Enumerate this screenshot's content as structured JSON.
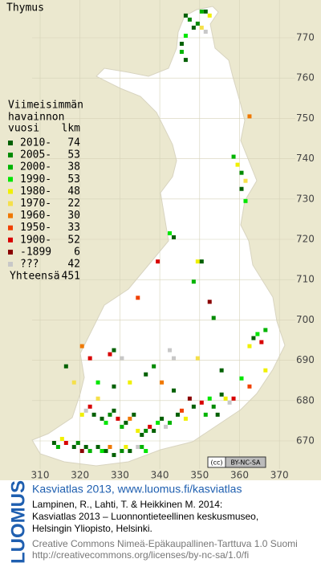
{
  "header": {
    "title": "Thymus"
  },
  "legend": {
    "heading": [
      "Viimeisimmän",
      "havainnon"
    ],
    "col_year": "vuosi",
    "col_count": "lkm",
    "rows": [
      {
        "label": "2010-",
        "count": 74,
        "color": "#006000"
      },
      {
        "label": "2005-",
        "count": 53,
        "color": "#008a00"
      },
      {
        "label": "2000-",
        "count": 38,
        "color": "#00b400"
      },
      {
        "label": "1990-",
        "count": 53,
        "color": "#00e600"
      },
      {
        "label": "1980-",
        "count": 48,
        "color": "#f0f000"
      },
      {
        "label": "1970-",
        "count": 22,
        "color": "#f5e04a"
      },
      {
        "label": "1960-",
        "count": 30,
        "color": "#f07800"
      },
      {
        "label": "1950-",
        "count": 33,
        "color": "#f04000"
      },
      {
        "label": "1900-",
        "count": 52,
        "color": "#d80000"
      },
      {
        "label": "-1899",
        "count": 6,
        "color": "#8a0000"
      },
      {
        "label": "???",
        "count": 42,
        "color": "#c8c8c8"
      }
    ],
    "total_label": "Yhteensä",
    "total": 451
  },
  "map": {
    "xticks": [
      310,
      320,
      330,
      340,
      350,
      360,
      370
    ],
    "yticks": [
      670,
      680,
      690,
      700,
      710,
      720,
      730,
      740,
      750,
      760,
      770
    ],
    "squares": [
      [
        346,
        775,
        0
      ],
      [
        347,
        774,
        1
      ],
      [
        348,
        772,
        0
      ],
      [
        346,
        770,
        3
      ],
      [
        345,
        768,
        0
      ],
      [
        345,
        766,
        2
      ],
      [
        346,
        764,
        0
      ],
      [
        350,
        776,
        2
      ],
      [
        351,
        776,
        0
      ],
      [
        352,
        775,
        4
      ],
      [
        349,
        773,
        1
      ],
      [
        350,
        772,
        5
      ],
      [
        351,
        771,
        10
      ],
      [
        362,
        750,
        6
      ],
      [
        358,
        740,
        2
      ],
      [
        359,
        738,
        4
      ],
      [
        360,
        736,
        1
      ],
      [
        361,
        734,
        5
      ],
      [
        360,
        732,
        0
      ],
      [
        361,
        729,
        3
      ],
      [
        342,
        721,
        3
      ],
      [
        343,
        720,
        0
      ],
      [
        349,
        714,
        4
      ],
      [
        350,
        714,
        0
      ],
      [
        339,
        714,
        8
      ],
      [
        348,
        709,
        2
      ],
      [
        334,
        705,
        7
      ],
      [
        352,
        704,
        9
      ],
      [
        353,
        700,
        1
      ],
      [
        363,
        695,
        0
      ],
      [
        364,
        696,
        3
      ],
      [
        365,
        694,
        8
      ],
      [
        362,
        693,
        4
      ],
      [
        366,
        697,
        2
      ],
      [
        327,
        691,
        8
      ],
      [
        328,
        692,
        0
      ],
      [
        320,
        693,
        6
      ],
      [
        342,
        692,
        10
      ],
      [
        343,
        690,
        10
      ],
      [
        349,
        690,
        5
      ],
      [
        355,
        687,
        0
      ],
      [
        360,
        685,
        3
      ],
      [
        362,
        683,
        7
      ],
      [
        366,
        687,
        4
      ],
      [
        313,
        669,
        0
      ],
      [
        314,
        668,
        2
      ],
      [
        315,
        670,
        4
      ],
      [
        316,
        669,
        8
      ],
      [
        318,
        668,
        0
      ],
      [
        319,
        669,
        1
      ],
      [
        320,
        667,
        9
      ],
      [
        321,
        668,
        0
      ],
      [
        322,
        667,
        2
      ],
      [
        324,
        668,
        0
      ],
      [
        325,
        667,
        3
      ],
      [
        326,
        667,
        0
      ],
      [
        327,
        668,
        6
      ],
      [
        328,
        666,
        0
      ],
      [
        330,
        667,
        1
      ],
      [
        331,
        668,
        4
      ],
      [
        332,
        667,
        0
      ],
      [
        334,
        668,
        10
      ],
      [
        335,
        668,
        2
      ],
      [
        336,
        667,
        3
      ],
      [
        320,
        676,
        4
      ],
      [
        321,
        677,
        10
      ],
      [
        322,
        678,
        8
      ],
      [
        323,
        676,
        0
      ],
      [
        324,
        680,
        5
      ],
      [
        325,
        675,
        0
      ],
      [
        326,
        674,
        3
      ],
      [
        327,
        676,
        1
      ],
      [
        328,
        677,
        0
      ],
      [
        329,
        675,
        8
      ],
      [
        330,
        673,
        2
      ],
      [
        331,
        674,
        0
      ],
      [
        332,
        675,
        6
      ],
      [
        333,
        676,
        0
      ],
      [
        334,
        672,
        4
      ],
      [
        335,
        671,
        0
      ],
      [
        336,
        672,
        1
      ],
      [
        337,
        673,
        8
      ],
      [
        338,
        672,
        0
      ],
      [
        339,
        674,
        3
      ],
      [
        340,
        675,
        0
      ],
      [
        341,
        673,
        10
      ],
      [
        342,
        674,
        2
      ],
      [
        344,
        676,
        0
      ],
      [
        345,
        677,
        7
      ],
      [
        346,
        675,
        4
      ],
      [
        348,
        678,
        0
      ],
      [
        350,
        679,
        8
      ],
      [
        352,
        680,
        3
      ],
      [
        353,
        678,
        1
      ],
      [
        355,
        681,
        0
      ],
      [
        356,
        680,
        4
      ],
      [
        357,
        679,
        10
      ],
      [
        358,
        680,
        8
      ],
      [
        354,
        676,
        0
      ],
      [
        351,
        676,
        2
      ],
      [
        347,
        680,
        9
      ],
      [
        343,
        682,
        0
      ],
      [
        340,
        684,
        6
      ],
      [
        336,
        686,
        0
      ],
      [
        332,
        684,
        4
      ],
      [
        328,
        683,
        0
      ],
      [
        324,
        684,
        3
      ],
      [
        318,
        684,
        5
      ],
      [
        316,
        688,
        0
      ],
      [
        322,
        690,
        8
      ],
      [
        330,
        690,
        10
      ],
      [
        338,
        688,
        1
      ]
    ]
  },
  "badge": {
    "cc": "(cc)",
    "license": "BY-NC-SA"
  },
  "footer": {
    "logo": "LUOMUS",
    "headline": "Kasviatlas 2013, www.luomus.fi/kasviatlas",
    "citation": [
      "Lampinen, R., Lahti, T. & Heikkinen M. 2014:",
      "Kasviatlas 2013 – Luonnontieteellinen keskusmuseo,",
      "Helsingin Yliopisto, Helsinki."
    ],
    "license": [
      "Creative Commons Nimeä-Epäkaupallinen-Tarttuva 1.0 Suomi",
      "http://creativecommons.org/licenses/by-nc-sa/1.0/fi"
    ]
  }
}
